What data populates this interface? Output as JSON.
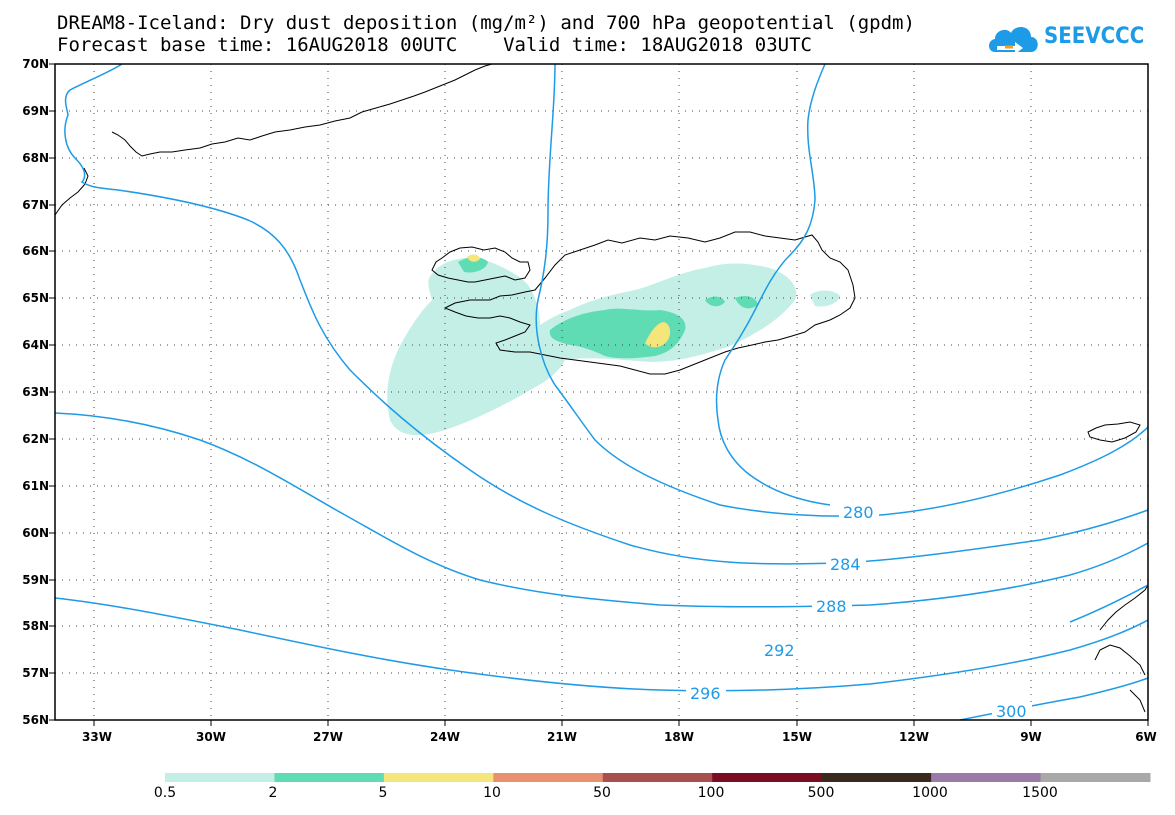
{
  "header": {
    "title_line1": "DREAM8-Iceland: Dry dust deposition (mg/m²) and 700 hPa geopotential (gpdm)",
    "title_line2": "Forecast base time: 16AUG2018 00UTC    Valid time: 18AUG2018 03UTC"
  },
  "logo": {
    "text": "SEEVCCC",
    "icon": "cloud-arrow-icon",
    "color": "#1e9be6"
  },
  "map": {
    "region": "Iceland",
    "extent": {
      "lon": [
        -34,
        -6
      ],
      "lat": [
        56,
        70
      ]
    },
    "lat_labels": [
      "70N",
      "69N",
      "68N",
      "67N",
      "66N",
      "65N",
      "64N",
      "63N",
      "62N",
      "61N",
      "60N",
      "59N",
      "58N",
      "57N",
      "56N"
    ],
    "lon_labels": [
      "33W",
      "30W",
      "27W",
      "24W",
      "21W",
      "18W",
      "15W",
      "12W",
      "9W",
      "6W"
    ],
    "contour_color": "#1e9be6",
    "contour_labels": [
      "280",
      "284",
      "288",
      "292",
      "296",
      "300"
    ]
  },
  "legend": {
    "labels": [
      "0.5",
      "2",
      "5",
      "10",
      "50",
      "100",
      "500",
      "1000",
      "1500"
    ],
    "colors": [
      "#c4efe6",
      "#5fdcb4",
      "#f4e67a",
      "#e89070",
      "#a85050",
      "#7a0c24",
      "#3a2a1e",
      "#9a7aa8",
      "#a8a8a8"
    ]
  }
}
